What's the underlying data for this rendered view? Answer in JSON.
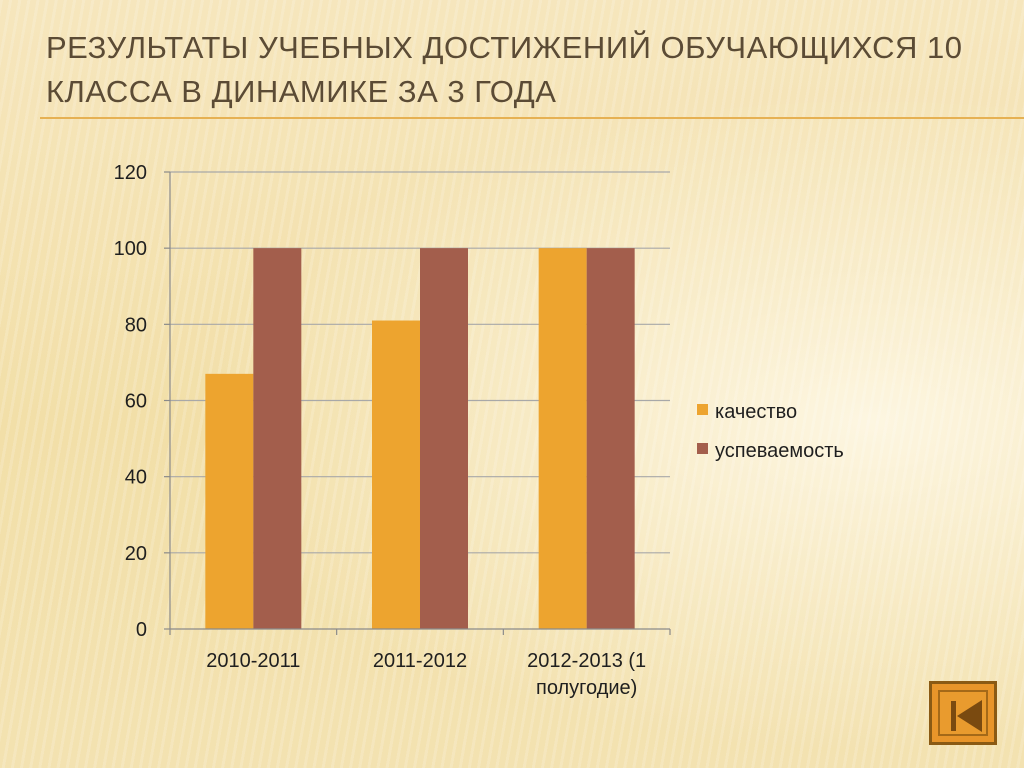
{
  "slide": {
    "title_line1": "Результаты учебных достижений обучающихся  10",
    "title_line2": "класса в динамике  за 3 года"
  },
  "chart_data": {
    "type": "bar",
    "categories": [
      "2010-2011",
      "2011-2012",
      "2012-2013 (1 полугодие)"
    ],
    "category_label_lines": [
      [
        "2010-2011"
      ],
      [
        "2011-2012"
      ],
      [
        "2012-2013 (1",
        "полугодие)"
      ]
    ],
    "series": [
      {
        "name": "качество",
        "values": [
          67,
          81,
          100
        ],
        "color": "#eda42f"
      },
      {
        "name": "успеваемость",
        "values": [
          100,
          100,
          100
        ],
        "color": "#a35e4c"
      }
    ],
    "ylim": [
      0,
      120
    ],
    "yticks": [
      0,
      20,
      40,
      60,
      80,
      100,
      120
    ],
    "grid": true,
    "legend_position": "right",
    "title": "",
    "xlabel": "",
    "ylabel": ""
  },
  "nav": {
    "back_icon": "skip-back-icon",
    "button_color": "#e8952a"
  }
}
